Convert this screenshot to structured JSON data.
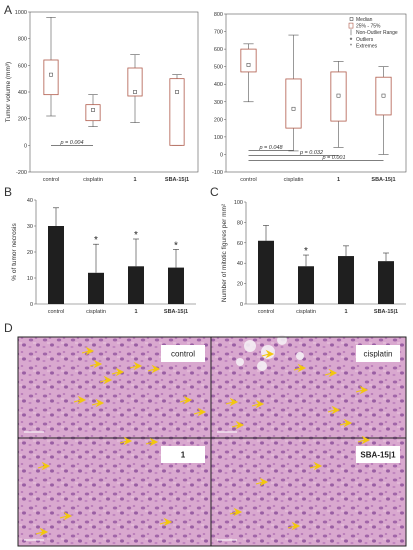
{
  "panel_labels": [
    "A",
    "B",
    "C",
    "D"
  ],
  "colors": {
    "bar": "#1f1f1f",
    "box": "#b05a4a",
    "axis": "#555555",
    "tissue": "#d7a6cc",
    "arrow": "#f2c70f"
  },
  "chart_data": [
    {
      "id": "A-left",
      "type": "box",
      "ylabel": "Tumor volume (mm³)",
      "categories": [
        "control",
        "cisplatin",
        "1",
        "SBA-15|1"
      ],
      "category_bold": [
        false,
        false,
        true,
        true
      ],
      "ylim": [
        -200,
        1000
      ],
      "yticks": [
        -200,
        0,
        200,
        400,
        600,
        800,
        1000
      ],
      "boxes": [
        {
          "median": 530,
          "q1": 380,
          "q3": 640,
          "min": 220,
          "max": 960
        },
        {
          "median": 265,
          "q1": 185,
          "q3": 305,
          "min": 140,
          "max": 380
        },
        {
          "median": 400,
          "q1": 370,
          "q3": 580,
          "min": 170,
          "max": 680
        },
        {
          "median": 400,
          "q1": 0,
          "q3": 500,
          "min": 0,
          "max": 530
        }
      ],
      "annotations": [
        {
          "text": "p = 0.004",
          "from": 0,
          "to": 1,
          "y": 0
        }
      ]
    },
    {
      "id": "A-right",
      "type": "box",
      "categories": [
        "control",
        "cisplatin",
        "1",
        "SBA-15|1"
      ],
      "category_bold": [
        false,
        false,
        true,
        true
      ],
      "ylim": [
        -100,
        800
      ],
      "yticks": [
        -100,
        0,
        100,
        200,
        300,
        400,
        500,
        600,
        700,
        800
      ],
      "boxes": [
        {
          "median": 510,
          "q1": 470,
          "q3": 600,
          "min": 300,
          "max": 630
        },
        {
          "median": 260,
          "q1": 150,
          "q3": 430,
          "min": 20,
          "max": 680
        },
        {
          "median": 335,
          "q1": 190,
          "q3": 470,
          "min": 40,
          "max": 530
        },
        {
          "median": 335,
          "q1": 225,
          "q3": 440,
          "min": 0,
          "max": 500
        }
      ],
      "legend": [
        "Median",
        "25% - 75%",
        "Non-Outlier Range",
        "Outliers",
        "Extremes"
      ],
      "legend_position": "top-right",
      "annotations": [
        {
          "text": "p = 0.048",
          "from": 0,
          "to": 1,
          "y": 0
        },
        {
          "text": "p = 0.032",
          "from": 0,
          "to": 2,
          "y": 0
        },
        {
          "text": "p = 0.001",
          "from": 0,
          "to": 3,
          "y": 0
        }
      ]
    },
    {
      "id": "B",
      "type": "bar",
      "ylabel": "% of tumor necrosis",
      "categories": [
        "control",
        "cisplatin",
        "1",
        "SBA-15|1"
      ],
      "category_bold": [
        false,
        false,
        true,
        true
      ],
      "values": [
        30,
        12,
        14.5,
        14
      ],
      "errors": [
        7,
        11,
        10.5,
        7
      ],
      "significant": [
        false,
        true,
        true,
        true
      ],
      "ylim": [
        0,
        40
      ],
      "yticks": [
        0,
        10,
        20,
        30,
        40
      ]
    },
    {
      "id": "C",
      "type": "bar",
      "ylabel": "Number of mitotic figures per mm²",
      "categories": [
        "control",
        "cisplatin",
        "1",
        "SBA-15|1"
      ],
      "category_bold": [
        false,
        false,
        true,
        true
      ],
      "values": [
        62,
        37,
        47,
        42
      ],
      "errors": [
        15,
        11,
        10,
        8
      ],
      "significant": [
        false,
        true,
        false,
        false
      ],
      "ylim": [
        0,
        100
      ],
      "yticks": [
        0,
        20,
        40,
        60,
        80,
        100
      ]
    }
  ],
  "micrographs": [
    {
      "label": "control",
      "bold": false
    },
    {
      "label": "cisplatin",
      "bold": false
    },
    {
      "label": "1",
      "bold": true
    },
    {
      "label": "SBA-15|1",
      "bold": true
    }
  ]
}
